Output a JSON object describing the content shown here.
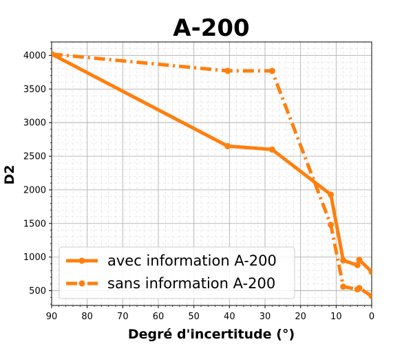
{
  "chart_data": {
    "type": "line",
    "title": "A-200",
    "xlabel": "Degré d'incertitude (°)",
    "ylabel": "D2",
    "xlim": [
      90,
      0
    ],
    "ylim": [
      280,
      4200
    ],
    "x_ticks": [
      "90",
      "80",
      "70",
      "60",
      "50",
      "40",
      "30",
      "20",
      "10",
      "0"
    ],
    "y_ticks": [
      "500",
      "1000",
      "1500",
      "2000",
      "2500",
      "3000",
      "3500",
      "4000"
    ],
    "grid": true,
    "minor_grid": true,
    "legend_position": "lower-left",
    "series": [
      {
        "name": "avec information A-200",
        "color": "#ff7f0e",
        "style": "solid",
        "x": [
          90,
          40.5,
          28,
          11.5,
          8,
          4,
          3.5,
          0
        ],
        "y": [
          4020,
          2650,
          2600,
          1930,
          950,
          880,
          960,
          780
        ]
      },
      {
        "name": "sans information A-200",
        "color": "#ff7f0e",
        "style": "dashdot",
        "x": [
          90,
          40.5,
          28,
          11.5,
          8,
          4,
          3.5,
          0
        ],
        "y": [
          4020,
          3770,
          3770,
          1480,
          560,
          520,
          540,
          420
        ]
      }
    ]
  }
}
